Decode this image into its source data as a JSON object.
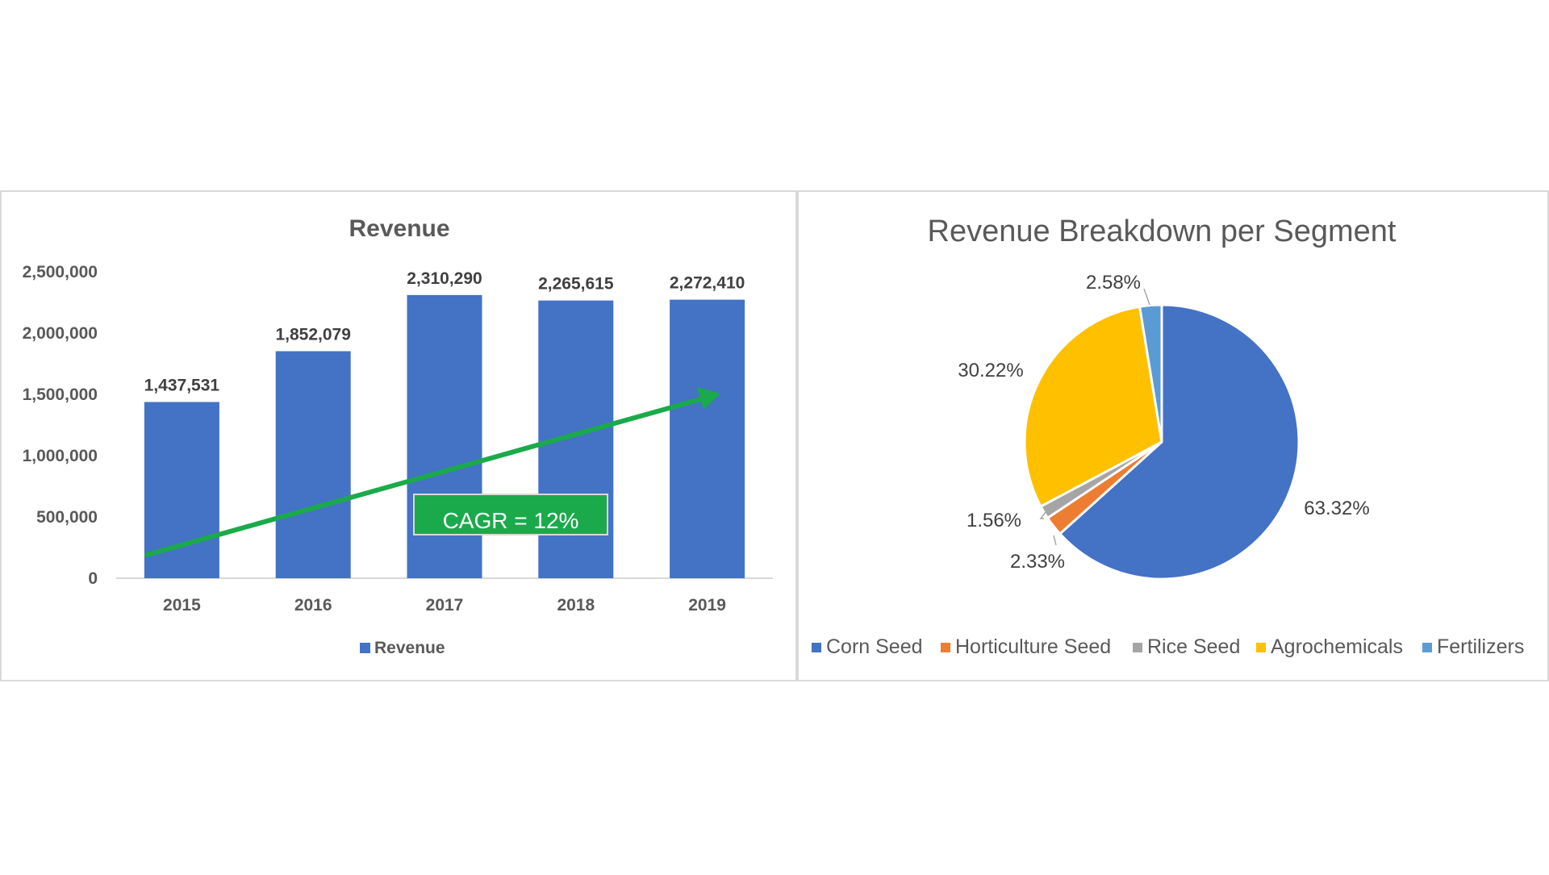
{
  "chart_data": [
    {
      "type": "bar",
      "title": "Revenue",
      "categories": [
        "2015",
        "2016",
        "2017",
        "2018",
        "2019"
      ],
      "series": [
        {
          "name": "Revenue",
          "values": [
            1437531,
            1852079,
            2310290,
            2265615,
            2272410
          ]
        }
      ],
      "data_labels": [
        "1,437,531",
        "1,852,079",
        "2,310,290",
        "2,265,615",
        "2,272,410"
      ],
      "ylim": [
        0,
        2500000
      ],
      "yticks": [
        0,
        500000,
        1000000,
        1500000,
        2000000,
        2500000
      ],
      "ytick_labels": [
        "0",
        "500,000",
        "1,000,000",
        "1,500,000",
        "2,000,000",
        "2,500,000"
      ],
      "grid": false,
      "legend_position": "bottom",
      "annotation": {
        "text": "CAGR = 12%"
      },
      "colors": {
        "bar": "#4472C4",
        "arrow": "#1BAA4B",
        "annotation_bg": "#1BAA4B",
        "annotation_text": "#ffffff"
      }
    },
    {
      "type": "pie",
      "title": "Revenue Breakdown per Segment",
      "slices": [
        {
          "name": "Corn Seed",
          "value": 63.32,
          "label": "63.32%",
          "color": "#4472C4"
        },
        {
          "name": "Horticulture Seed",
          "value": 2.33,
          "label": "2.33%",
          "color": "#ED7D31"
        },
        {
          "name": "Rice Seed",
          "value": 1.56,
          "label": "1.56%",
          "color": "#A5A5A5"
        },
        {
          "name": "Agrochemicals",
          "value": 30.22,
          "label": "30.22%",
          "color": "#FFC000"
        },
        {
          "name": "Fertilizers",
          "value": 2.58,
          "label": "2.58%",
          "color": "#5B9BD5"
        }
      ],
      "legend_position": "bottom"
    }
  ]
}
